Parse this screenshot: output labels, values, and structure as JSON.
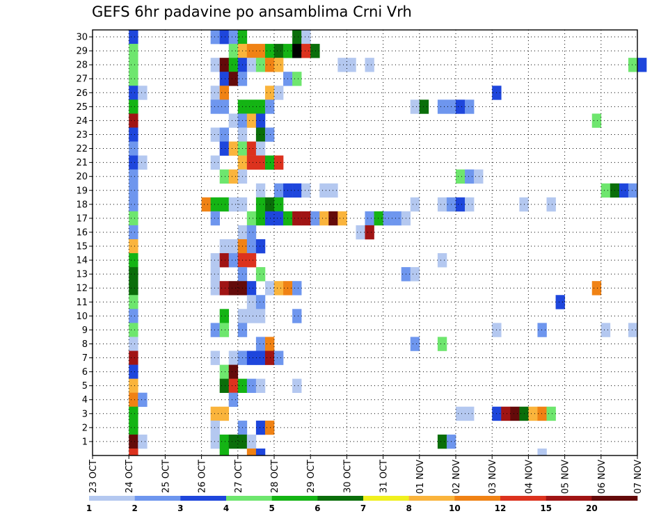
{
  "chart_data": {
    "type": "heatmap",
    "title": "GEFS 6hr padavine po ansamblima Crni Vrh",
    "xlabel": "",
    "ylabel": "",
    "x_start": "2016-10-23T00",
    "x_end": "2016-11-07T00",
    "x_ticks": [
      "23 OCT",
      "24 OCT",
      "25 OCT",
      "26 OCT",
      "27 OCT",
      "28 OCT",
      "29 OCT",
      "30 OCT",
      "31 OCT",
      "01 NOV",
      "02 NOV",
      "03 NOV",
      "04 NOV",
      "05 NOV",
      "06 NOV",
      "07 NOV"
    ],
    "y_ticks": [
      1,
      2,
      3,
      4,
      5,
      6,
      7,
      8,
      9,
      10,
      11,
      12,
      13,
      14,
      15,
      16,
      17,
      18,
      19,
      20,
      21,
      22,
      23,
      24,
      25,
      26,
      27,
      28,
      29,
      30
    ],
    "grid": true,
    "legend": {
      "placement": "bottom",
      "labels": [
        "1",
        "2",
        "3",
        "4",
        "5",
        "6",
        "7",
        "8",
        "10",
        "12",
        "15",
        "20"
      ],
      "colors": [
        "#b4c8f0",
        "#6e96ee",
        "#1e46dc",
        "#6ee66e",
        "#14b414",
        "#0a6e0a",
        "#f0f01e",
        "#fab43c",
        "#f08214",
        "#dc321e",
        "#a01414",
        "#640a0a"
      ]
    },
    "cells": [
      [
        "2016-10-24T00",
        30,
        3
      ],
      [
        "2016-10-26T06",
        30,
        2
      ],
      [
        "2016-10-26T12",
        30,
        3
      ],
      [
        "2016-10-26T18",
        30,
        2
      ],
      [
        "2016-10-27T00",
        30,
        5
      ],
      [
        "2016-10-28T12",
        30,
        6
      ],
      [
        "2016-10-28T18",
        30,
        1
      ],
      [
        "2016-10-24T00",
        29,
        4
      ],
      [
        "2016-10-26T18",
        29,
        4
      ],
      [
        "2016-10-27T00",
        29,
        8
      ],
      [
        "2016-10-27T06",
        29,
        9
      ],
      [
        "2016-10-27T12",
        29,
        9
      ],
      [
        "2016-10-27T18",
        29,
        5
      ],
      [
        "2016-10-28T00",
        29,
        6
      ],
      [
        "2016-10-28T06",
        29,
        5
      ],
      [
        "2016-10-28T12",
        29,
        14
      ],
      [
        "2016-10-28T18",
        29,
        10
      ],
      [
        "2016-10-29T00",
        29,
        6
      ],
      [
        "2016-10-24T00",
        28,
        4
      ],
      [
        "2016-10-26T06",
        28,
        1
      ],
      [
        "2016-10-26T12",
        28,
        12
      ],
      [
        "2016-10-26T18",
        28,
        5
      ],
      [
        "2016-10-27T00",
        28,
        3
      ],
      [
        "2016-10-27T06",
        28,
        1
      ],
      [
        "2016-10-27T12",
        28,
        4
      ],
      [
        "2016-10-27T18",
        28,
        9
      ],
      [
        "2016-10-28T00",
        28,
        8
      ],
      [
        "2016-10-29T18",
        28,
        1
      ],
      [
        "2016-10-30T00",
        28,
        1
      ],
      [
        "2016-10-30T12",
        28,
        1
      ],
      [
        "2016-11-06T18",
        28,
        4
      ],
      [
        "2016-11-07T00",
        28,
        3
      ],
      [
        "2016-10-24T00",
        27,
        4
      ],
      [
        "2016-10-26T12",
        27,
        3
      ],
      [
        "2016-10-26T18",
        27,
        12
      ],
      [
        "2016-10-27T00",
        27,
        2
      ],
      [
        "2016-10-28T06",
        27,
        2
      ],
      [
        "2016-10-28T12",
        27,
        4
      ],
      [
        "2016-10-24T00",
        26,
        3
      ],
      [
        "2016-10-24T06",
        26,
        1
      ],
      [
        "2016-10-26T06",
        26,
        1
      ],
      [
        "2016-10-26T12",
        26,
        9
      ],
      [
        "2016-10-27T18",
        26,
        8
      ],
      [
        "2016-10-28T00",
        26,
        1
      ],
      [
        "2016-11-03T00",
        26,
        3
      ],
      [
        "2016-10-24T00",
        25,
        5
      ],
      [
        "2016-10-26T06",
        25,
        2
      ],
      [
        "2016-10-26T12",
        25,
        2
      ],
      [
        "2016-10-27T00",
        25,
        5
      ],
      [
        "2016-10-27T06",
        25,
        5
      ],
      [
        "2016-10-27T12",
        25,
        5
      ],
      [
        "2016-10-27T18",
        25,
        2
      ],
      [
        "2016-10-31T18",
        25,
        1
      ],
      [
        "2016-11-01T00",
        25,
        6
      ],
      [
        "2016-11-01T12",
        25,
        2
      ],
      [
        "2016-11-01T18",
        25,
        2
      ],
      [
        "2016-11-02T00",
        25,
        3
      ],
      [
        "2016-11-02T06",
        25,
        2
      ],
      [
        "2016-10-24T00",
        24,
        11
      ],
      [
        "2016-10-26T18",
        24,
        1
      ],
      [
        "2016-10-27T00",
        24,
        2
      ],
      [
        "2016-10-27T06",
        24,
        8
      ],
      [
        "2016-10-27T12",
        24,
        3
      ],
      [
        "2016-11-05T18",
        24,
        4
      ],
      [
        "2016-10-24T00",
        23,
        3
      ],
      [
        "2016-10-26T06",
        23,
        1
      ],
      [
        "2016-10-26T12",
        23,
        2
      ],
      [
        "2016-10-27T00",
        23,
        1
      ],
      [
        "2016-10-27T12",
        23,
        6
      ],
      [
        "2016-10-27T18",
        23,
        2
      ],
      [
        "2016-10-24T00",
        22,
        2
      ],
      [
        "2016-10-26T12",
        22,
        3
      ],
      [
        "2016-10-26T18",
        22,
        8
      ],
      [
        "2016-10-27T00",
        22,
        4
      ],
      [
        "2016-10-27T06",
        22,
        10
      ],
      [
        "2016-10-27T12",
        22,
        1
      ],
      [
        "2016-10-24T00",
        21,
        3
      ],
      [
        "2016-10-24T06",
        21,
        1
      ],
      [
        "2016-10-26T06",
        21,
        1
      ],
      [
        "2016-10-27T00",
        21,
        8
      ],
      [
        "2016-10-27T06",
        21,
        10
      ],
      [
        "2016-10-27T12",
        21,
        10
      ],
      [
        "2016-10-27T18",
        21,
        5
      ],
      [
        "2016-10-28T00",
        21,
        10
      ],
      [
        "2016-10-24T00",
        20,
        2
      ],
      [
        "2016-10-26T12",
        20,
        4
      ],
      [
        "2016-10-26T18",
        20,
        8
      ],
      [
        "2016-10-27T00",
        20,
        1
      ],
      [
        "2016-11-02T00",
        20,
        4
      ],
      [
        "2016-11-02T06",
        20,
        2
      ],
      [
        "2016-11-02T12",
        20,
        1
      ],
      [
        "2016-10-24T00",
        19,
        2
      ],
      [
        "2016-10-27T12",
        19,
        1
      ],
      [
        "2016-10-28T00",
        19,
        2
      ],
      [
        "2016-10-28T06",
        19,
        3
      ],
      [
        "2016-10-28T12",
        19,
        3
      ],
      [
        "2016-10-28T18",
        19,
        1
      ],
      [
        "2016-10-29T06",
        19,
        1
      ],
      [
        "2016-10-29T12",
        19,
        1
      ],
      [
        "2016-11-06T00",
        19,
        4
      ],
      [
        "2016-11-06T06",
        19,
        6
      ],
      [
        "2016-11-06T12",
        19,
        3
      ],
      [
        "2016-11-06T18",
        19,
        2
      ],
      [
        "2016-10-24T00",
        18,
        2
      ],
      [
        "2016-10-26T00",
        18,
        9
      ],
      [
        "2016-10-26T06",
        18,
        5
      ],
      [
        "2016-10-26T12",
        18,
        5
      ],
      [
        "2016-10-26T18",
        18,
        1
      ],
      [
        "2016-10-27T00",
        18,
        1
      ],
      [
        "2016-10-27T12",
        18,
        5
      ],
      [
        "2016-10-27T18",
        18,
        6
      ],
      [
        "2016-10-28T00",
        18,
        5
      ],
      [
        "2016-10-31T18",
        18,
        1
      ],
      [
        "2016-11-01T12",
        18,
        1
      ],
      [
        "2016-11-01T18",
        18,
        2
      ],
      [
        "2016-11-02T00",
        18,
        3
      ],
      [
        "2016-11-02T06",
        18,
        1
      ],
      [
        "2016-11-03T18",
        18,
        1
      ],
      [
        "2016-11-04T12",
        18,
        1
      ],
      [
        "2016-10-24T00",
        17,
        4
      ],
      [
        "2016-10-26T06",
        17,
        2
      ],
      [
        "2016-10-27T06",
        17,
        4
      ],
      [
        "2016-10-27T12",
        17,
        5
      ],
      [
        "2016-10-27T18",
        17,
        3
      ],
      [
        "2016-10-28T00",
        17,
        3
      ],
      [
        "2016-10-28T06",
        17,
        5
      ],
      [
        "2016-10-28T12",
        17,
        11
      ],
      [
        "2016-10-28T18",
        17,
        11
      ],
      [
        "2016-10-29T00",
        17,
        2
      ],
      [
        "2016-10-29T06",
        17,
        8
      ],
      [
        "2016-10-29T12",
        17,
        12
      ],
      [
        "2016-10-29T18",
        17,
        8
      ],
      [
        "2016-10-30T12",
        17,
        2
      ],
      [
        "2016-10-30T18",
        17,
        5
      ],
      [
        "2016-10-31T00",
        17,
        2
      ],
      [
        "2016-10-31T06",
        17,
        2
      ],
      [
        "2016-10-31T12",
        17,
        1
      ],
      [
        "2016-10-24T00",
        16,
        2
      ],
      [
        "2016-10-27T00",
        16,
        1
      ],
      [
        "2016-10-27T06",
        16,
        2
      ],
      [
        "2016-10-30T06",
        16,
        1
      ],
      [
        "2016-10-30T12",
        16,
        11
      ],
      [
        "2016-10-24T00",
        15,
        8
      ],
      [
        "2016-10-26T12",
        15,
        1
      ],
      [
        "2016-10-26T18",
        15,
        1
      ],
      [
        "2016-10-27T00",
        15,
        9
      ],
      [
        "2016-10-27T06",
        15,
        2
      ],
      [
        "2016-10-27T12",
        15,
        3
      ],
      [
        "2016-10-24T00",
        14,
        5
      ],
      [
        "2016-10-26T06",
        14,
        1
      ],
      [
        "2016-10-26T12",
        14,
        11
      ],
      [
        "2016-10-26T18",
        14,
        2
      ],
      [
        "2016-10-27T00",
        14,
        10
      ],
      [
        "2016-10-27T06",
        14,
        10
      ],
      [
        "2016-11-01T12",
        14,
        1
      ],
      [
        "2016-10-24T00",
        13,
        6
      ],
      [
        "2016-10-26T06",
        13,
        1
      ],
      [
        "2016-10-27T00",
        13,
        2
      ],
      [
        "2016-10-27T12",
        13,
        4
      ],
      [
        "2016-10-31T12",
        13,
        2
      ],
      [
        "2016-10-31T18",
        13,
        1
      ],
      [
        "2016-10-24T00",
        12,
        6
      ],
      [
        "2016-10-26T06",
        12,
        1
      ],
      [
        "2016-10-26T12",
        12,
        11
      ],
      [
        "2016-10-26T18",
        12,
        12
      ],
      [
        "2016-10-27T00",
        12,
        12
      ],
      [
        "2016-10-27T06",
        12,
        3
      ],
      [
        "2016-10-27T18",
        12,
        1
      ],
      [
        "2016-10-28T00",
        12,
        8
      ],
      [
        "2016-10-28T06",
        12,
        9
      ],
      [
        "2016-10-28T12",
        12,
        2
      ],
      [
        "2016-11-05T18",
        12,
        9
      ],
      [
        "2016-10-24T00",
        11,
        4
      ],
      [
        "2016-10-27T06",
        11,
        1
      ],
      [
        "2016-10-27T12",
        11,
        2
      ],
      [
        "2016-11-04T18",
        11,
        3
      ],
      [
        "2016-10-24T00",
        10,
        2
      ],
      [
        "2016-10-26T12",
        10,
        5
      ],
      [
        "2016-10-27T00",
        10,
        1
      ],
      [
        "2016-10-27T06",
        10,
        1
      ],
      [
        "2016-10-27T12",
        10,
        1
      ],
      [
        "2016-10-28T12",
        10,
        2
      ],
      [
        "2016-10-24T00",
        9,
        4
      ],
      [
        "2016-10-26T06",
        9,
        2
      ],
      [
        "2016-10-26T12",
        9,
        4
      ],
      [
        "2016-10-27T00",
        9,
        2
      ],
      [
        "2016-11-03T00",
        9,
        1
      ],
      [
        "2016-11-04T06",
        9,
        2
      ],
      [
        "2016-11-06T00",
        9,
        1
      ],
      [
        "2016-11-06T18",
        9,
        1
      ],
      [
        "2016-10-24T00",
        8,
        1
      ],
      [
        "2016-10-27T12",
        8,
        2
      ],
      [
        "2016-10-27T18",
        8,
        9
      ],
      [
        "2016-10-31T18",
        8,
        2
      ],
      [
        "2016-11-01T12",
        8,
        4
      ],
      [
        "2016-10-24T00",
        7,
        11
      ],
      [
        "2016-10-26T06",
        7,
        1
      ],
      [
        "2016-10-26T18",
        7,
        1
      ],
      [
        "2016-10-27T00",
        7,
        2
      ],
      [
        "2016-10-27T06",
        7,
        3
      ],
      [
        "2016-10-27T12",
        7,
        3
      ],
      [
        "2016-10-27T18",
        7,
        11
      ],
      [
        "2016-10-28T00",
        7,
        2
      ],
      [
        "2016-10-24T00",
        6,
        3
      ],
      [
        "2016-10-26T12",
        6,
        4
      ],
      [
        "2016-10-26T18",
        6,
        12
      ],
      [
        "2016-10-24T00",
        5,
        8
      ],
      [
        "2016-10-26T12",
        5,
        6
      ],
      [
        "2016-10-26T18",
        5,
        10
      ],
      [
        "2016-10-27T00",
        5,
        5
      ],
      [
        "2016-10-27T06",
        5,
        2
      ],
      [
        "2016-10-27T12",
        5,
        1
      ],
      [
        "2016-10-28T12",
        5,
        1
      ],
      [
        "2016-10-24T00",
        4,
        9
      ],
      [
        "2016-10-24T06",
        4,
        2
      ],
      [
        "2016-10-26T18",
        4,
        2
      ],
      [
        "2016-10-24T00",
        3,
        5
      ],
      [
        "2016-10-26T06",
        3,
        8
      ],
      [
        "2016-10-26T12",
        3,
        8
      ],
      [
        "2016-11-02T00",
        3,
        1
      ],
      [
        "2016-11-02T06",
        3,
        1
      ],
      [
        "2016-11-03T00",
        3,
        3
      ],
      [
        "2016-11-03T06",
        3,
        11
      ],
      [
        "2016-11-03T12",
        3,
        12
      ],
      [
        "2016-11-03T18",
        3,
        6
      ],
      [
        "2016-11-04T00",
        3,
        8
      ],
      [
        "2016-11-04T06",
        3,
        9
      ],
      [
        "2016-11-04T12",
        3,
        4
      ],
      [
        "2016-10-24T00",
        2,
        5
      ],
      [
        "2016-10-26T06",
        2,
        1
      ],
      [
        "2016-10-27T00",
        2,
        2
      ],
      [
        "2016-10-27T12",
        2,
        3
      ],
      [
        "2016-10-27T18",
        2,
        9
      ],
      [
        "2016-10-24T00",
        1,
        12
      ],
      [
        "2016-10-24T06",
        1,
        1
      ],
      [
        "2016-10-26T06",
        1,
        1
      ],
      [
        "2016-10-26T12",
        1,
        5
      ],
      [
        "2016-10-26T18",
        1,
        6
      ],
      [
        "2016-10-27T00",
        1,
        6
      ],
      [
        "2016-10-27T06",
        1,
        1
      ],
      [
        "2016-11-01T12",
        1,
        6
      ],
      [
        "2016-11-01T18",
        1,
        2
      ],
      [
        "2016-10-24T00",
        0,
        10
      ],
      [
        "2016-10-26T12",
        0,
        5
      ],
      [
        "2016-10-27T06",
        0,
        9
      ],
      [
        "2016-10-27T12",
        0,
        3
      ],
      [
        "2016-11-04T06",
        0,
        1
      ]
    ]
  }
}
